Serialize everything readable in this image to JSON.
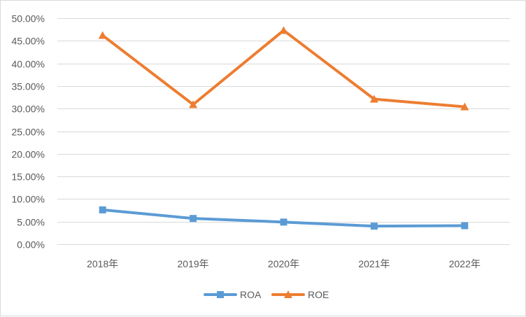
{
  "chart_data": {
    "type": "line",
    "categories": [
      "2018年",
      "2019年",
      "2020年",
      "2021年",
      "2022年"
    ],
    "series": [
      {
        "name": "ROA",
        "values": [
          7.6,
          5.7,
          4.9,
          4.0,
          4.1
        ],
        "color": "#5b9bd5",
        "marker": "square"
      },
      {
        "name": "ROE",
        "values": [
          46.2,
          30.9,
          47.3,
          32.1,
          30.4
        ],
        "color": "#ed7d31",
        "marker": "triangle"
      }
    ],
    "ylim": [
      0,
      50
    ],
    "ytick_step": 5,
    "ytick_labels": [
      "0.00%",
      "5.00%",
      "10.00%",
      "15.00%",
      "20.00%",
      "25.00%",
      "30.00%",
      "35.00%",
      "40.00%",
      "45.00%",
      "50.00%"
    ],
    "title": "",
    "xlabel": "",
    "ylabel": "",
    "grid": "horizontal",
    "legend": {
      "position": "bottom",
      "items": [
        "ROA",
        "ROE"
      ]
    }
  }
}
